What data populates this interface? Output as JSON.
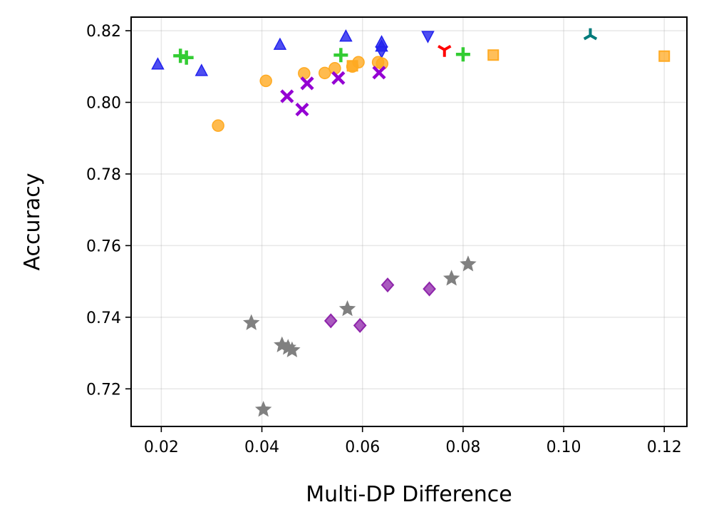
{
  "chart_data": {
    "type": "scatter",
    "xlabel": "Multi-DP Difference",
    "ylabel": "Accuracy",
    "xlim": [
      0.014,
      0.1245
    ],
    "ylim": [
      0.7095,
      0.8238
    ],
    "xticks": [
      0.02,
      0.04,
      0.06,
      0.08,
      0.1,
      0.12
    ],
    "xtick_labels": [
      "0.02",
      "0.04",
      "0.06",
      "0.08",
      "0.10",
      "0.12"
    ],
    "yticks": [
      0.72,
      0.74,
      0.76,
      0.78,
      0.8,
      0.82
    ],
    "ytick_labels": [
      "0.72",
      "0.74",
      "0.76",
      "0.78",
      "0.80",
      "0.82"
    ],
    "grid": true,
    "legend": "none",
    "series": [
      {
        "marker": "triangle-up",
        "color": "#2222ee",
        "points": [
          [
            0.0193,
            0.8105
          ],
          [
            0.028,
            0.8087
          ],
          [
            0.0436,
            0.816
          ],
          [
            0.0567,
            0.8183
          ],
          [
            0.0638,
            0.8167
          ],
          [
            0.0638,
            0.8155
          ]
        ]
      },
      {
        "marker": "triangle-down",
        "color": "#2222ee",
        "points": [
          [
            0.0638,
            0.8143
          ],
          [
            0.073,
            0.8186
          ]
        ]
      },
      {
        "marker": "plus",
        "color": "#33cc33",
        "points": [
          [
            0.0238,
            0.813
          ],
          [
            0.025,
            0.8125
          ],
          [
            0.0557,
            0.8132
          ],
          [
            0.08,
            0.8134
          ]
        ]
      },
      {
        "marker": "circle",
        "color": "#ffaa22",
        "points": [
          [
            0.0313,
            0.7935
          ],
          [
            0.0408,
            0.806
          ],
          [
            0.0484,
            0.8081
          ],
          [
            0.0525,
            0.8082
          ],
          [
            0.0545,
            0.8095
          ],
          [
            0.058,
            0.81
          ],
          [
            0.0592,
            0.8112
          ],
          [
            0.0631,
            0.8112
          ],
          [
            0.0639,
            0.8108
          ]
        ]
      },
      {
        "marker": "square",
        "color": "#ffaa22",
        "points": [
          [
            0.058,
            0.8102
          ],
          [
            0.086,
            0.8132
          ],
          [
            0.12,
            0.8129
          ]
        ]
      },
      {
        "marker": "x",
        "color": "#9400d3",
        "points": [
          [
            0.045,
            0.8017
          ],
          [
            0.048,
            0.798
          ],
          [
            0.049,
            0.8053
          ],
          [
            0.0552,
            0.8068
          ],
          [
            0.0633,
            0.8083
          ]
        ]
      },
      {
        "marker": "tri-down",
        "color": "#ff0000",
        "points": [
          [
            0.0763,
            0.8147
          ]
        ]
      },
      {
        "marker": "tri-up",
        "color": "#007b7b",
        "points": [
          [
            0.1053,
            0.8187
          ]
        ]
      },
      {
        "marker": "star",
        "color": "#808080",
        "points": [
          [
            0.0379,
            0.7384
          ],
          [
            0.0403,
            0.7142
          ],
          [
            0.044,
            0.7322
          ],
          [
            0.0452,
            0.7315
          ],
          [
            0.046,
            0.7308
          ],
          [
            0.057,
            0.7423
          ],
          [
            0.0777,
            0.7508
          ],
          [
            0.081,
            0.7548
          ]
        ]
      },
      {
        "marker": "diamond",
        "color": "#8e24aa",
        "points": [
          [
            0.0537,
            0.739
          ],
          [
            0.0595,
            0.7377
          ],
          [
            0.065,
            0.749
          ],
          [
            0.0733,
            0.7479
          ]
        ]
      }
    ]
  }
}
